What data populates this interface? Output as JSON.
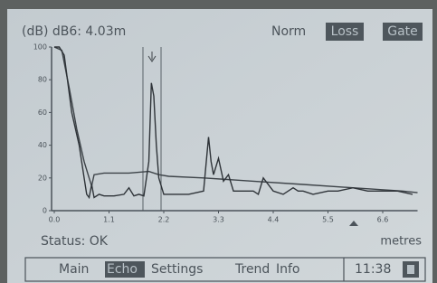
{
  "header": {
    "mode": "Norm",
    "buttons": [
      "Loss",
      "Gate"
    ]
  },
  "status": "Status: OK",
  "menu": {
    "items": [
      "Main",
      "Echo",
      "Settings",
      "Trend",
      "Info"
    ],
    "time": "11:38"
  },
  "chart_data": {
    "type": "line",
    "title": "(dB) dB6: 4.03m",
    "xlabel": "metres",
    "xlim": [
      0,
      7.3
    ],
    "ylim": [
      0,
      100
    ],
    "xticks": [
      {
        "value": 0,
        "label": "0.0"
      },
      1.1,
      2.2,
      3.3,
      4.4,
      5.5,
      6.6
    ],
    "yticks": [
      0,
      20,
      40,
      60,
      80,
      100
    ],
    "series": [
      {
        "color": "#3d4348",
        "x": [
          0,
          0.15,
          0.3,
          0.45,
          0.6,
          0.7,
          0.75,
          0.8,
          1.0,
          1.5,
          1.9,
          2.1,
          2.3,
          3.0,
          4.0,
          5.0,
          6.0,
          7.0,
          7.3
        ],
        "values": [
          100,
          98,
          75,
          50,
          30,
          20,
          15,
          22,
          23,
          23,
          24,
          22,
          21,
          20,
          18,
          16,
          14,
          12,
          11
        ]
      },
      {
        "color": "#2e3338",
        "x": [
          0,
          0.1,
          0.2,
          0.35,
          0.5,
          0.6,
          0.65,
          0.7,
          0.75,
          0.8,
          0.9,
          1.0,
          1.2,
          1.4,
          1.5,
          1.6,
          1.7,
          1.8,
          1.9,
          1.95,
          2.0,
          2.05,
          2.1,
          2.2,
          2.4,
          2.7,
          3.0,
          3.1,
          3.15,
          3.2,
          3.3,
          3.4,
          3.5,
          3.6,
          3.8,
          4.0,
          4.1,
          4.2,
          4.4,
          4.6,
          4.8,
          4.9,
          5.0,
          5.2,
          5.5,
          5.7,
          6.0,
          6.3,
          6.6,
          6.9,
          7.2
        ],
        "values": [
          100,
          100,
          95,
          60,
          40,
          20,
          10,
          8,
          16,
          8,
          10,
          9,
          9,
          10,
          14,
          9,
          10,
          9,
          30,
          78,
          70,
          40,
          20,
          10,
          10,
          10,
          12,
          45,
          30,
          22,
          32,
          18,
          22,
          12,
          12,
          12,
          10,
          20,
          12,
          10,
          14,
          12,
          12,
          10,
          12,
          12,
          14,
          12,
          12,
          12,
          10
        ]
      }
    ]
  }
}
